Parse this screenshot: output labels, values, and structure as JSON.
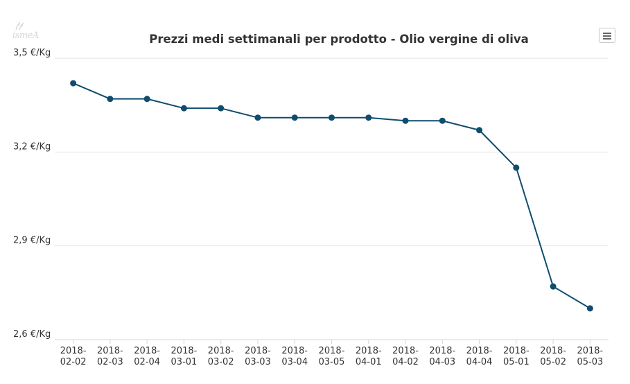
{
  "logo": {
    "text": "ismeA"
  },
  "menu": {
    "icon": "hamburger-menu-icon"
  },
  "chart_data": {
    "type": "line",
    "title": "Prezzi medi settimanali per prodotto - Olio vergine di oliva",
    "xlabel": "",
    "ylabel": "",
    "categories": [
      "2018-02-02",
      "2018-02-03",
      "2018-02-04",
      "2018-03-01",
      "2018-03-02",
      "2018-03-03",
      "2018-03-04",
      "2018-03-05",
      "2018-04-01",
      "2018-04-02",
      "2018-04-03",
      "2018-04-04",
      "2018-05-01",
      "2018-05-02",
      "2018-05-03"
    ],
    "series": [
      {
        "name": "Olio vergine di oliva",
        "color": "#0f4c6e",
        "values": [
          3.42,
          3.37,
          3.37,
          3.34,
          3.34,
          3.31,
          3.31,
          3.31,
          3.31,
          3.3,
          3.3,
          3.27,
          3.15,
          2.77,
          2.7
        ]
      }
    ],
    "ylim": [
      2.6,
      3.5
    ],
    "yticks": [
      {
        "value": 3.5,
        "label": "3,5 €/Kg"
      },
      {
        "value": 3.2,
        "label": "3,2 €/Kg"
      },
      {
        "value": 2.9,
        "label": "2,9 €/Kg"
      },
      {
        "value": 2.6,
        "label": "2,6 €/Kg"
      }
    ],
    "grid": true,
    "legend": "none"
  }
}
